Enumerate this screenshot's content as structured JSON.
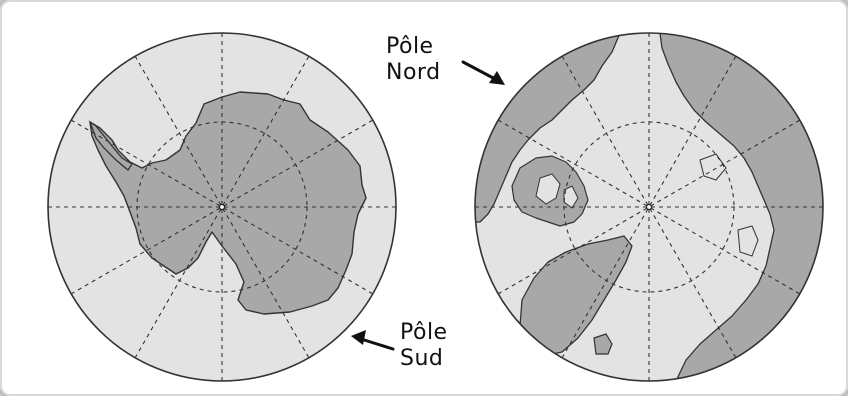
{
  "labels": {
    "north": [
      "Pôle",
      "Nord"
    ],
    "south": [
      "Pôle",
      "Sud"
    ]
  },
  "colors": {
    "ocean": "#e3e3e3",
    "land": "#a8a8a8",
    "outline": "#333333",
    "grid": "#333333"
  }
}
